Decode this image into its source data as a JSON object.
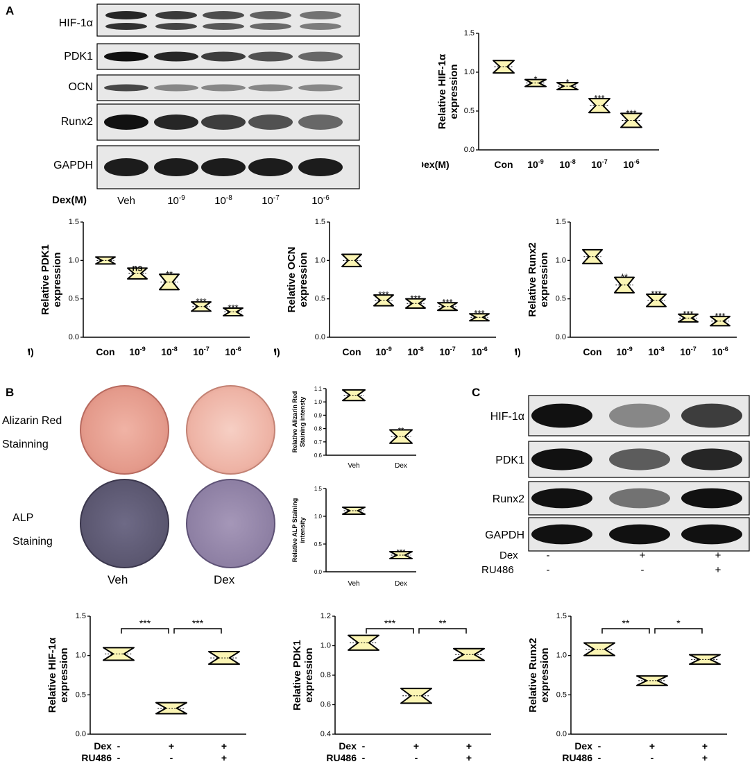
{
  "panelA": {
    "letter": "A",
    "blot_labels": [
      "HIF-1α",
      "PDK1",
      "OCN",
      "Runx2",
      "GAPDH"
    ],
    "lane_title": "Dex(M)",
    "lanes": [
      "Veh",
      "10",
      "10",
      "10",
      "10"
    ],
    "lane_exp": [
      "",
      "-9",
      "-8",
      "-7",
      "-6"
    ]
  },
  "panelB": {
    "letter": "B",
    "stain1_line1": "Alizarin Red",
    "stain1_line2": "Stainning",
    "stain2_line1": "ALP",
    "stain2_line2": "Staining",
    "col1": "Veh",
    "col2": "Dex"
  },
  "panelC": {
    "letter": "C",
    "blot_labels": [
      "HIF-1α",
      "PDK1",
      "Runx2",
      "GAPDH"
    ],
    "dex_label": "Dex",
    "ru_label": "RU486",
    "dex_signs": [
      "-",
      "+",
      "+"
    ],
    "ru_signs": [
      "-",
      "-",
      "+"
    ]
  },
  "colors": {
    "violin_fill": "#fbf5b4",
    "blot_bg": "#e8e8e8",
    "alizarin": "#e59a8d",
    "alp": "#6e6a86"
  },
  "chart_data": [
    {
      "id": "hif_dose",
      "type": "violin",
      "ylabel": "Relative HIF-1α expression",
      "xaxis_title": "Dex(M)",
      "ylim": [
        0,
        1.5
      ],
      "yticks": [
        "0.0",
        "0.5",
        "1.0",
        "1.5"
      ],
      "categories": [
        "Con",
        "10",
        "10",
        "10",
        "10"
      ],
      "cat_exp": [
        "",
        "-9",
        "-8",
        "-7",
        "-6"
      ],
      "values": [
        1.07,
        0.86,
        0.82,
        0.57,
        0.38
      ],
      "spread": [
        0.08,
        0.03,
        0.04,
        0.09,
        0.09
      ],
      "sig": [
        "",
        "*",
        "*",
        "***",
        "***"
      ]
    },
    {
      "id": "pdk1_dose",
      "type": "violin",
      "ylabel": "Relative PDK1 expression",
      "xaxis_title": "Dex(M)",
      "ylim": [
        0,
        1.5
      ],
      "yticks": [
        "0.0",
        "0.5",
        "1.0",
        "1.5"
      ],
      "categories": [
        "Con",
        "10",
        "10",
        "10",
        "10"
      ],
      "cat_exp": [
        "",
        "-9",
        "-8",
        "-7",
        "-6"
      ],
      "values": [
        1.0,
        0.83,
        0.72,
        0.4,
        0.33
      ],
      "spread": [
        0.04,
        0.07,
        0.1,
        0.06,
        0.05
      ],
      "sig": [
        "",
        "ns",
        "**",
        "***",
        "***"
      ]
    },
    {
      "id": "ocn_dose",
      "type": "violin",
      "ylabel": "Relative OCN expression",
      "xaxis_title": "Dex(M)",
      "ylim": [
        0,
        1.5
      ],
      "yticks": [
        "0.0",
        "0.5",
        "1.0",
        "1.5"
      ],
      "categories": [
        "Con",
        "10",
        "10",
        "10",
        "10"
      ],
      "cat_exp": [
        "",
        "-9",
        "-8",
        "-7",
        "-6"
      ],
      "values": [
        1.0,
        0.48,
        0.44,
        0.4,
        0.26
      ],
      "spread": [
        0.08,
        0.07,
        0.06,
        0.05,
        0.04
      ],
      "sig": [
        "",
        "***",
        "***",
        "***",
        "***"
      ]
    },
    {
      "id": "runx2_dose",
      "type": "violin",
      "ylabel": "Relative Runx2 expression",
      "xaxis_title": "Dex(M)",
      "ylim": [
        0,
        1.5
      ],
      "yticks": [
        "0.0",
        "0.5",
        "1.0",
        "1.5"
      ],
      "categories": [
        "Con",
        "10",
        "10",
        "10",
        "10"
      ],
      "cat_exp": [
        "",
        "-9",
        "-8",
        "-7",
        "-6"
      ],
      "values": [
        1.05,
        0.68,
        0.48,
        0.25,
        0.21
      ],
      "spread": [
        0.09,
        0.1,
        0.08,
        0.05,
        0.06
      ],
      "sig": [
        "",
        "**",
        "***",
        "***",
        "***"
      ]
    },
    {
      "id": "alizarin",
      "type": "violin",
      "ylabel": "Relative Alizarin Red Staining intensty",
      "ylim": [
        0.6,
        1.1
      ],
      "yticks": [
        "0.6",
        "0.7",
        "0.8",
        "0.9",
        "1.0",
        "1.1"
      ],
      "categories": [
        "Veh",
        "Dex"
      ],
      "values": [
        1.05,
        0.74
      ],
      "spread": [
        0.04,
        0.05
      ],
      "sig": [
        "",
        "**"
      ]
    },
    {
      "id": "alp",
      "type": "violin",
      "ylabel": "Relative ALP Staining intensity",
      "ylim": [
        0,
        1.5
      ],
      "yticks": [
        "0.0",
        "0.5",
        "1.0",
        "1.5"
      ],
      "categories": [
        "Veh",
        "Dex"
      ],
      "values": [
        1.1,
        0.3
      ],
      "spread": [
        0.06,
        0.05
      ],
      "sig": [
        "",
        "***"
      ]
    },
    {
      "id": "hif_ru",
      "type": "violin",
      "ylabel": "Relative HIF-1α expression",
      "ylim": [
        0,
        1.5
      ],
      "yticks": [
        "0.0",
        "0.5",
        "1.0",
        "1.5"
      ],
      "values": [
        1.02,
        0.33,
        0.97
      ],
      "spread": [
        0.08,
        0.07,
        0.08
      ],
      "brackets": [
        {
          "from": 0,
          "to": 1,
          "label": "***"
        },
        {
          "from": 1,
          "to": 2,
          "label": "***"
        }
      ]
    },
    {
      "id": "pdk1_ru",
      "type": "violin",
      "ylabel": "Relative PDK1 expression",
      "ylim": [
        0.4,
        1.2
      ],
      "yticks": [
        "0.4",
        "0.6",
        "0.8",
        "1.0",
        "1.2"
      ],
      "values": [
        1.02,
        0.66,
        0.94
      ],
      "spread": [
        0.05,
        0.05,
        0.04
      ],
      "brackets": [
        {
          "from": 0,
          "to": 1,
          "label": "***"
        },
        {
          "from": 1,
          "to": 2,
          "label": "**"
        }
      ]
    },
    {
      "id": "runx2_ru",
      "type": "violin",
      "ylabel": "Relative Runx2 expression",
      "ylim": [
        0,
        1.5
      ],
      "yticks": [
        "0.0",
        "0.5",
        "1.0",
        "1.5"
      ],
      "values": [
        1.08,
        0.68,
        0.95
      ],
      "spread": [
        0.08,
        0.06,
        0.06
      ],
      "brackets": [
        {
          "from": 0,
          "to": 1,
          "label": "**"
        },
        {
          "from": 1,
          "to": 2,
          "label": "*"
        }
      ]
    }
  ],
  "ru_axis": {
    "dex": "Dex",
    "ru": "RU486",
    "dex_signs": [
      "-",
      "+",
      "+"
    ],
    "ru_signs": [
      "-",
      "-",
      "+"
    ]
  }
}
